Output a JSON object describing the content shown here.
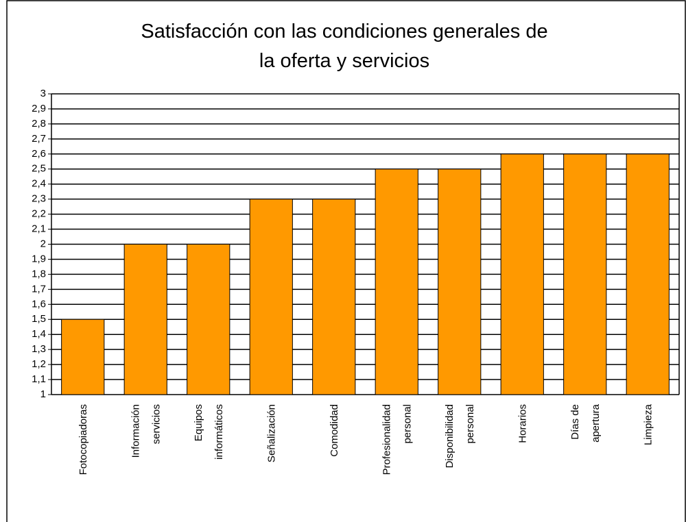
{
  "chart_data": {
    "type": "bar",
    "title": "Satisfacción con las condiciones generales de\nla oferta y servicios",
    "categories": [
      "Fotocopiadoras",
      "Información\nservicios",
      "Equipos\ninformáticos",
      "Señalización",
      "Comodidad",
      "Profesionalidad\npersonal",
      "Disponibilidad\npersonal",
      "Horarios",
      "Días de\napertura",
      "Limpieza"
    ],
    "values": [
      1.5,
      2,
      2,
      2.3,
      2.3,
      2.5,
      2.5,
      2.6,
      2.6,
      2.6
    ],
    "color": "#ff9900",
    "ylim": [
      1,
      3
    ],
    "yticks": [
      1,
      {
        "value": 1.1,
        "label": "1,1"
      },
      {
        "value": 1.2,
        "label": "1,2"
      },
      {
        "value": 1.3,
        "label": "1,3"
      },
      {
        "value": 1.4,
        "label": "1,4"
      },
      {
        "value": 1.5,
        "label": "1,5"
      },
      {
        "value": 1.6,
        "label": "1,6"
      },
      {
        "value": 1.7,
        "label": "1,7"
      },
      {
        "value": 1.8,
        "label": "1,8"
      },
      {
        "value": 1.9,
        "label": "1,9"
      },
      2,
      {
        "value": 2.1,
        "label": "2,1"
      },
      {
        "value": 2.2,
        "label": "2,2"
      },
      {
        "value": 2.3,
        "label": "2,3"
      },
      {
        "value": 2.4,
        "label": "2,4"
      },
      {
        "value": 2.5,
        "label": "2,5"
      },
      {
        "value": 2.6,
        "label": "2,6"
      },
      {
        "value": 2.7,
        "label": "2,7"
      },
      {
        "value": 2.8,
        "label": "2,8"
      },
      {
        "value": 2.9,
        "label": "2,9"
      },
      3
    ],
    "grid": true
  }
}
